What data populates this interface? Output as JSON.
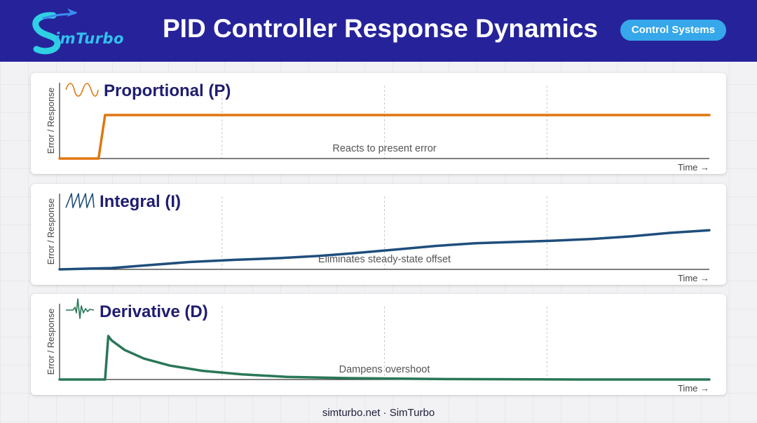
{
  "header": {
    "logo_text": "imTurbo",
    "title": "PID Controller Response Dynamics",
    "badge": "Control Systems"
  },
  "footer": {
    "text": "simturbo.net · SimTurbo"
  },
  "chart_data": [
    {
      "type": "line",
      "title": "Proportional (P)",
      "ylabel": "Error / Response",
      "xlabel": "Time →",
      "annotation": "Reacts to present error",
      "icon": "sine-wave-icon",
      "color": "#e0760f",
      "xlim": [
        0,
        100
      ],
      "ylim": [
        0,
        1
      ],
      "grid": true,
      "x": [
        0,
        6,
        7,
        100
      ],
      "y": [
        0,
        0,
        1,
        1
      ]
    },
    {
      "type": "line",
      "title": "Integral (I)",
      "ylabel": "Error / Response",
      "xlabel": "Time →",
      "annotation": "Eliminates steady-state offset",
      "icon": "sawtooth-wave-icon",
      "color": "#1f4e7c",
      "xlim": [
        0,
        100
      ],
      "ylim": [
        0,
        1
      ],
      "grid": true,
      "x": [
        0,
        8,
        14,
        20,
        27,
        34,
        40,
        46,
        52,
        58,
        64,
        70,
        76,
        82,
        88,
        94,
        100
      ],
      "y": [
        0,
        0.03,
        0.1,
        0.17,
        0.22,
        0.26,
        0.31,
        0.38,
        0.46,
        0.54,
        0.6,
        0.63,
        0.66,
        0.7,
        0.76,
        0.84,
        0.9
      ]
    },
    {
      "type": "line",
      "title": "Derivative (D)",
      "ylabel": "Error / Response",
      "xlabel": "Time →",
      "annotation": "Dampens overshoot",
      "icon": "spike-wave-icon",
      "color": "#2a7758",
      "xlim": [
        0,
        100
      ],
      "ylim": [
        0,
        1
      ],
      "grid": true,
      "x": [
        0,
        7,
        7.5,
        8,
        10,
        13,
        17,
        22,
        28,
        35,
        45,
        60,
        80,
        100
      ],
      "y": [
        0,
        0,
        1,
        0.9,
        0.68,
        0.48,
        0.32,
        0.2,
        0.12,
        0.06,
        0.03,
        0.01,
        0,
        0
      ]
    }
  ]
}
